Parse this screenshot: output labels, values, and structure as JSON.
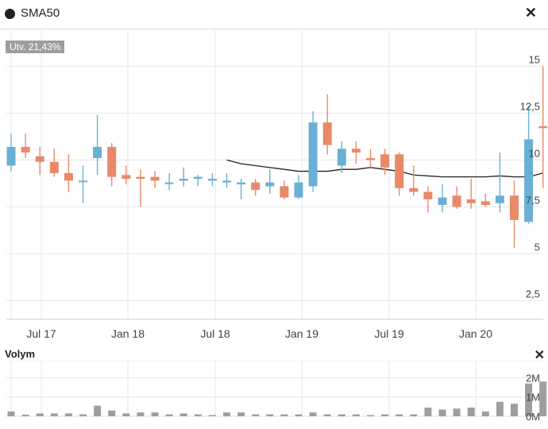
{
  "header": {
    "title": "SMA50",
    "close_icon": "close-icon"
  },
  "badge": "Utv. 21,43%",
  "volume_panel": {
    "title": "Volym",
    "close_icon": "close-icon"
  },
  "colors": {
    "up": "#6ab0d4",
    "down": "#e8896a",
    "sma": "#222222",
    "volume": "#9e9e9e",
    "grid": "#e6e6e6"
  },
  "chart_data": [
    {
      "type": "candlestick",
      "y_axis_position": "right",
      "ylim": [
        1.5,
        16.5
      ],
      "yticks": [
        2.5,
        5,
        7.5,
        10,
        12.5,
        15
      ],
      "ytick_labels": [
        "2,5",
        "5",
        "7,5",
        "10",
        "12,5",
        "15"
      ],
      "x_labels": [
        "Jul 17",
        "Jan 18",
        "Jul 18",
        "Jan 19",
        "Jul 19",
        "Jan 20"
      ],
      "grid": true,
      "candles": [
        {
          "o": 9.7,
          "h": 11.4,
          "l": 9.4,
          "c": 10.7
        },
        {
          "o": 10.7,
          "h": 11.4,
          "l": 10.1,
          "c": 10.4
        },
        {
          "o": 10.2,
          "h": 10.7,
          "l": 9.2,
          "c": 9.9
        },
        {
          "o": 9.9,
          "h": 10.6,
          "l": 9.1,
          "c": 9.3
        },
        {
          "o": 9.3,
          "h": 10.3,
          "l": 8.3,
          "c": 8.9
        },
        {
          "o": 8.9,
          "h": 9.7,
          "l": 7.7,
          "c": 8.9
        },
        {
          "o": 10.1,
          "h": 12.4,
          "l": 9.2,
          "c": 10.7
        },
        {
          "o": 10.7,
          "h": 10.9,
          "l": 8.6,
          "c": 9.1
        },
        {
          "o": 9.2,
          "h": 9.7,
          "l": 8.7,
          "c": 9.0
        },
        {
          "o": 9.1,
          "h": 9.5,
          "l": 7.5,
          "c": 9.0
        },
        {
          "o": 9.1,
          "h": 9.4,
          "l": 8.5,
          "c": 8.9
        },
        {
          "o": 8.8,
          "h": 9.3,
          "l": 8.4,
          "c": 8.8
        },
        {
          "o": 8.9,
          "h": 9.6,
          "l": 8.6,
          "c": 9.0
        },
        {
          "o": 9.0,
          "h": 9.2,
          "l": 8.6,
          "c": 9.1
        },
        {
          "o": 8.9,
          "h": 9.3,
          "l": 8.6,
          "c": 9.0
        },
        {
          "o": 8.8,
          "h": 9.3,
          "l": 8.5,
          "c": 8.9
        },
        {
          "o": 8.7,
          "h": 9.0,
          "l": 7.9,
          "c": 8.8
        },
        {
          "o": 8.8,
          "h": 9.0,
          "l": 8.1,
          "c": 8.4
        },
        {
          "o": 8.6,
          "h": 9.5,
          "l": 8.2,
          "c": 8.8
        },
        {
          "o": 8.6,
          "h": 8.9,
          "l": 7.9,
          "c": 8.0
        },
        {
          "o": 8.0,
          "h": 9.2,
          "l": 7.9,
          "c": 8.8
        },
        {
          "o": 8.6,
          "h": 12.6,
          "l": 8.3,
          "c": 12.0
        },
        {
          "o": 12.0,
          "h": 13.5,
          "l": 10.3,
          "c": 10.8
        },
        {
          "o": 9.7,
          "h": 11.0,
          "l": 9.3,
          "c": 10.6
        },
        {
          "o": 10.6,
          "h": 11.0,
          "l": 9.8,
          "c": 10.4
        },
        {
          "o": 10.1,
          "h": 10.6,
          "l": 9.6,
          "c": 10.0
        },
        {
          "o": 10.3,
          "h": 10.6,
          "l": 9.2,
          "c": 9.6
        },
        {
          "o": 10.3,
          "h": 10.4,
          "l": 8.1,
          "c": 8.5
        },
        {
          "o": 8.5,
          "h": 9.7,
          "l": 8.1,
          "c": 8.3
        },
        {
          "o": 8.3,
          "h": 8.6,
          "l": 7.2,
          "c": 7.9
        },
        {
          "o": 7.6,
          "h": 8.7,
          "l": 7.2,
          "c": 8.0
        },
        {
          "o": 8.1,
          "h": 8.6,
          "l": 7.4,
          "c": 7.5
        },
        {
          "o": 7.9,
          "h": 9.0,
          "l": 7.4,
          "c": 7.7
        },
        {
          "o": 7.8,
          "h": 8.2,
          "l": 7.5,
          "c": 7.6
        },
        {
          "o": 7.7,
          "h": 10.4,
          "l": 7.2,
          "c": 8.1
        },
        {
          "o": 8.1,
          "h": 8.9,
          "l": 5.3,
          "c": 6.8
        },
        {
          "o": 6.7,
          "h": 12.9,
          "l": 6.6,
          "c": 11.1
        },
        {
          "o": 11.8,
          "h": 15.0,
          "l": 8.5,
          "c": 11.7
        }
      ],
      "sma50_start_index": 15,
      "sma50": [
        10.0,
        9.8,
        9.7,
        9.6,
        9.5,
        9.4,
        9.4,
        9.4,
        9.5,
        9.5,
        9.6,
        9.5,
        9.4,
        9.2,
        9.15,
        9.1,
        9.1,
        9.1,
        9.1,
        9.15,
        9.1,
        9.1,
        9.3
      ]
    },
    {
      "type": "bar",
      "title": "Volym",
      "ytick_labels": [
        "0M",
        "1M",
        "2M"
      ],
      "ylim": [
        0,
        2.8
      ],
      "values": [
        0.25,
        0.08,
        0.15,
        0.15,
        0.15,
        0.1,
        0.55,
        0.3,
        0.15,
        0.2,
        0.2,
        0.1,
        0.15,
        0.1,
        0.0,
        0.2,
        0.2,
        0.1,
        0.1,
        0.1,
        0.1,
        0.2,
        0.1,
        0.1,
        0.1,
        0.0,
        0.1,
        0.1,
        0.1,
        0.45,
        0.35,
        0.4,
        0.45,
        0.25,
        0.75,
        0.65,
        1.7,
        1.8
      ]
    }
  ]
}
